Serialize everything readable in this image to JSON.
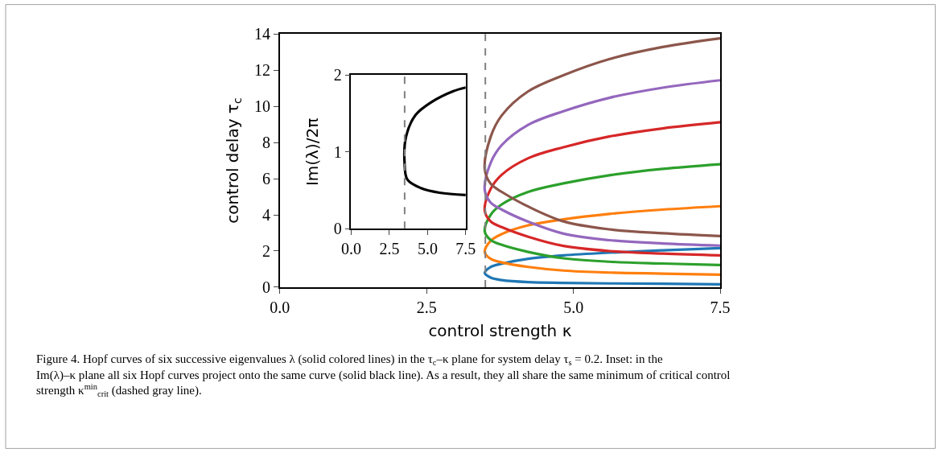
{
  "chart_data": [
    {
      "type": "line",
      "xlabel": "control strength κ",
      "ylabel": "control delay τ$_{c}$",
      "x": [
        7.5,
        6.52,
        5.61,
        4.83,
        4.23,
        3.78,
        3.59,
        3.49,
        3.59,
        3.78,
        4.23,
        4.83,
        5.61,
        6.52,
        7.5
      ],
      "series": [
        {
          "color": "#1f77b4",
          "values": [
            0.16,
            0.19,
            0.21,
            0.24,
            0.28,
            0.39,
            0.53,
            0.79,
            1.12,
            1.3,
            1.57,
            1.76,
            1.91,
            2.04,
            2.16
          ]
        },
        {
          "color": "#ff7f0e",
          "values": [
            0.69,
            0.75,
            0.81,
            0.92,
            1.12,
            1.37,
            1.57,
            1.94,
            2.56,
            2.94,
            3.42,
            3.75,
            4.05,
            4.29,
            4.48
          ]
        },
        {
          "color": "#2ca02c",
          "values": [
            1.23,
            1.31,
            1.41,
            1.6,
            1.95,
            2.34,
            2.61,
            3.09,
            4.0,
            4.58,
            5.27,
            5.74,
            6.19,
            6.54,
            6.8
          ]
        },
        {
          "color": "#d62728",
          "values": [
            1.76,
            1.86,
            2.0,
            2.28,
            2.79,
            3.32,
            3.64,
            4.23,
            5.43,
            6.22,
            7.13,
            7.74,
            8.33,
            8.78,
            9.12
          ]
        },
        {
          "color": "#9467bd",
          "values": [
            2.3,
            2.42,
            2.6,
            2.96,
            3.62,
            4.29,
            4.68,
            5.38,
            6.87,
            7.86,
            8.98,
            9.73,
            10.47,
            11.03,
            11.44
          ]
        },
        {
          "color": "#8c564b",
          "values": [
            2.83,
            2.98,
            3.2,
            3.64,
            4.46,
            5.27,
            5.72,
            6.53,
            8.31,
            9.5,
            10.83,
            11.72,
            12.61,
            13.28,
            13.76
          ]
        }
      ],
      "xlim": [
        0,
        7.5
      ],
      "xticks": [
        {
          "value": 0,
          "label": "0.0"
        },
        {
          "value": 2.5,
          "label": "2.5"
        },
        {
          "value": 5,
          "label": "5.0"
        },
        {
          "value": 7.5,
          "label": "7.5"
        }
      ],
      "ylim": [
        0,
        14
      ],
      "yticks": [
        0,
        2,
        4,
        6,
        8,
        10,
        12,
        14
      ],
      "ref_lines": [
        {
          "axis": "x",
          "value": 3.5,
          "color": "#808080",
          "line_style": "dashed"
        }
      ],
      "marker": "none",
      "line_style": "solid",
      "annotations": [
        "Figure 4. Hopf curves of six successive eigenvalues λ (solid colored lines) in the τ$_{c}$–κ plane for system delay τ$_{s}$ = 0.2. Inset: in the Im(λ)–κ plane all six Hopf curves project onto the same curve (solid black line). As a result, they all share the same minimum of critical control strength κ$^{min}$$_{crit}$ (dashed gray line)."
      ]
    },
    {
      "type": "line",
      "ylabel": "Im(λ)/2π",
      "x": [
        7.5,
        5.78,
        4.56,
        3.68,
        3.49,
        3.59,
        4.21,
        5.26,
        6.66,
        7.5
      ],
      "series": [
        {
          "color": "#000000",
          "values": [
            0.44,
            0.47,
            0.53,
            0.64,
            0.88,
            1.2,
            1.48,
            1.65,
            1.79,
            1.84
          ]
        }
      ],
      "xlim": [
        0,
        7.5
      ],
      "xticks": [
        {
          "value": 0,
          "label": "0.0"
        },
        {
          "value": 2.5,
          "label": "2.5"
        },
        {
          "value": 5,
          "label": "5.0"
        },
        {
          "value": 7.5,
          "label": "7.5"
        }
      ],
      "ylim": [
        0,
        2
      ],
      "yticks": [
        0,
        1,
        2
      ],
      "ref_lines": [
        {
          "axis": "x",
          "value": 3.5,
          "color": "#808080",
          "line_style": "dashed"
        }
      ],
      "marker": "none",
      "line_style": "solid"
    }
  ]
}
